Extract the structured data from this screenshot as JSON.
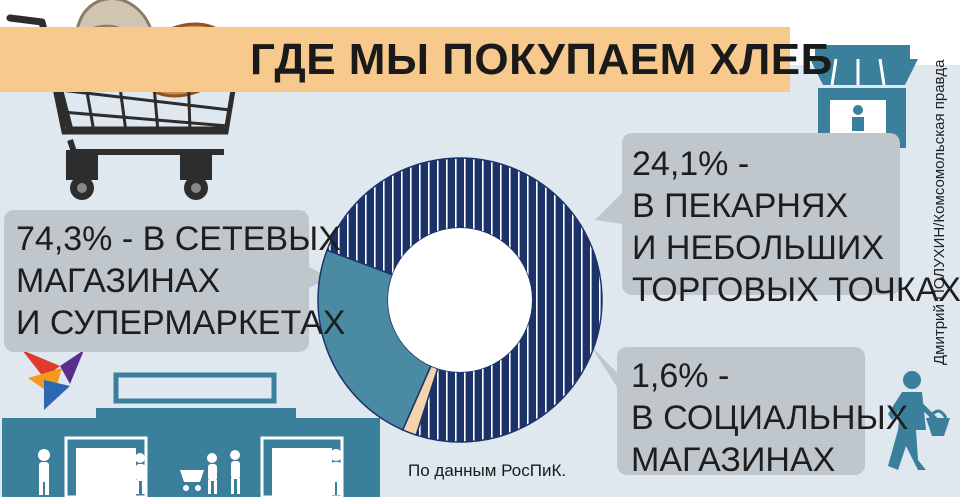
{
  "title": "ГДЕ МЫ ПОКУПАЕМ ХЛЕБ",
  "source": "По данным РосПиК.",
  "credit": "Дмитрий ПОЛУХИН/Комсомольская правда",
  "colors": {
    "background": "#ffffff",
    "panel": "#dfe8ef",
    "title_band": "#f7c98d",
    "callout": "#bfc6cc",
    "navy": "#1b3369",
    "teal": "#4a8aa3",
    "peach": "#f6d3ad",
    "store": "#3a7f9c"
  },
  "callouts": {
    "left": {
      "lines": [
        "74,3% - В СЕТЕВЫХ",
        "МАГАЗИНАХ",
        "И СУПЕРМАРКЕТАХ"
      ]
    },
    "right": {
      "lines": [
        "24,1% -",
        "В ПЕКАРНЯХ",
        "И НЕБОЛЬШИХ",
        "ТОРГОВЫХ ТОЧКАХ"
      ]
    },
    "small": {
      "lines": [
        "1,6% -",
        "В СОЦИАЛЬНЫХ",
        "МАГАЗИНАХ"
      ]
    }
  },
  "icons": [
    "shopping-cart-with-bread-icon",
    "kiosk-icon",
    "bird-logo-icon",
    "supermarket-building-icon",
    "shopper-with-basket-icon"
  ],
  "chart_data": {
    "type": "pie",
    "variant": "donut",
    "title": "ГДЕ МЫ ПОКУПАЕМ ХЛЕБ",
    "categories": [
      "В СЕТЕВЫХ МАГАЗИНАХ И СУПЕРМАРКЕТАХ",
      "В ПЕКАРНЯХ И НЕБОЛЬШИХ ТОРГОВЫХ ТОЧКАХ",
      "В СОЦИАЛЬНЫХ МАГАЗИНАХ"
    ],
    "values": [
      74.3,
      24.1,
      1.6
    ],
    "labels": [
      "74,3%",
      "24,1%",
      "1,6%"
    ],
    "colors": [
      "#1b3369",
      "#4a8aa3",
      "#f6d3ad"
    ],
    "patterns": [
      "vertical-stripes",
      "solid",
      "solid"
    ]
  }
}
